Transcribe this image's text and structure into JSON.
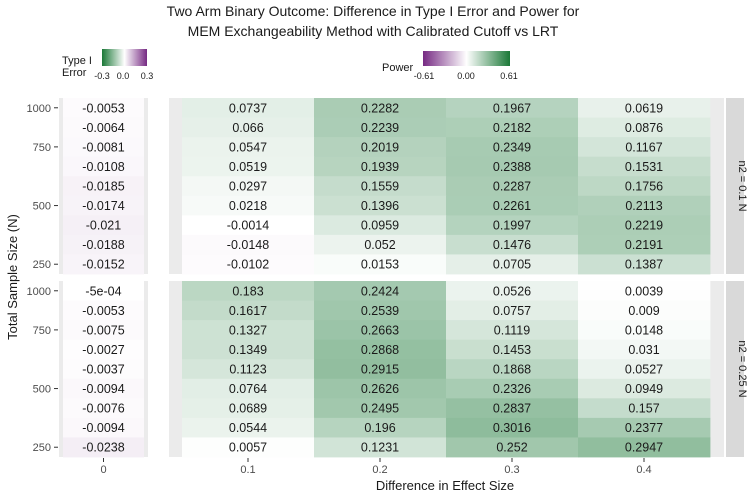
{
  "colors": {
    "negative": "#762a83",
    "zero": "#ffffff",
    "positive": "#1b7837",
    "panel_bg": "#ebebeb",
    "strip_bg": "#d9d9d9"
  },
  "chart_data": {
    "type": "heatmap",
    "title_lines": [
      "Two Arm Binary Outcome: Difference in Type I Error and Power for",
      "MEM Exchangeability Method with Calibrated Cutoff vs LRT"
    ],
    "xlabel": "Difference in Effect Size",
    "ylabel": "Total Sample Size (N)",
    "x_ticks_type1": [
      "0"
    ],
    "x_ticks_power": [
      "0.1",
      "0.2",
      "0.3",
      "0.4"
    ],
    "y_ticks": [
      {
        "label": "1000",
        "row": 0
      },
      {
        "label": "750",
        "row": 2
      },
      {
        "label": "500",
        "row": 5
      },
      {
        "label": "250",
        "row": 8
      }
    ],
    "legend_type1": {
      "title_lines": [
        "Type I",
        "Error"
      ],
      "range": [
        -0.3,
        0.3
      ],
      "tick_labels": [
        "-0.3",
        "0.0",
        "0.3"
      ]
    },
    "legend_power": {
      "title": "Power",
      "range": [
        -0.61,
        0.61
      ],
      "tick_labels": [
        "-0.61",
        "0.00",
        "0.61"
      ]
    },
    "facets": [
      {
        "strip": "n2 = 0.1 N",
        "type1": [
          "-0.0053",
          "-0.0064",
          "-0.0081",
          "-0.0108",
          "-0.0185",
          "-0.0174",
          "-0.021",
          "-0.0188",
          "-0.0152"
        ],
        "power": [
          [
            "0.0737",
            "0.2282",
            "0.1967",
            "0.0619"
          ],
          [
            "0.066",
            "0.2239",
            "0.2182",
            "0.0876"
          ],
          [
            "0.0547",
            "0.2019",
            "0.2349",
            "0.1167"
          ],
          [
            "0.0519",
            "0.1939",
            "0.2388",
            "0.1531"
          ],
          [
            "0.0297",
            "0.1559",
            "0.2287",
            "0.1756"
          ],
          [
            "0.0218",
            "0.1396",
            "0.2261",
            "0.2113"
          ],
          [
            "-0.0014",
            "0.0959",
            "0.1997",
            "0.2219"
          ],
          [
            "-0.0148",
            "0.052",
            "0.1476",
            "0.2191"
          ],
          [
            "-0.0102",
            "0.0153",
            "0.0705",
            "0.1387"
          ]
        ]
      },
      {
        "strip": "n2 = 0.25 N",
        "type1": [
          "-5e-04",
          "-0.0053",
          "-0.0075",
          "-0.0027",
          "-0.0037",
          "-0.0094",
          "-0.0076",
          "-0.0094",
          "-0.0238"
        ],
        "power": [
          [
            "0.183",
            "0.2424",
            "0.0526",
            "0.0039"
          ],
          [
            "0.1617",
            "0.2539",
            "0.0757",
            "0.009"
          ],
          [
            "0.1327",
            "0.2663",
            "0.1119",
            "0.0148"
          ],
          [
            "0.1349",
            "0.2868",
            "0.1453",
            "0.031"
          ],
          [
            "0.1123",
            "0.2915",
            "0.1868",
            "0.0527"
          ],
          [
            "0.0764",
            "0.2626",
            "0.2326",
            "0.0949"
          ],
          [
            "0.0689",
            "0.2495",
            "0.2837",
            "0.157"
          ],
          [
            "0.0544",
            "0.196",
            "0.3016",
            "0.2377"
          ],
          [
            "0.0057",
            "0.1231",
            "0.252",
            "0.2947"
          ]
        ]
      }
    ]
  }
}
